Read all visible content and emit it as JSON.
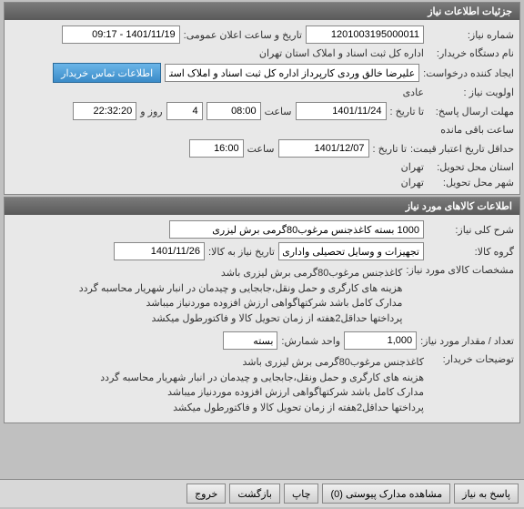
{
  "panel1": {
    "title": "جزئیات اطلاعات نیاز",
    "need_number_label": "شماره نیاز:",
    "need_number": "1201003195000011",
    "announce_label": "تاریخ و ساعت اعلان عمومی:",
    "announce_value": "1401/11/19 - 09:17",
    "buyer_label": "نام دستگاه خریدار:",
    "buyer_value": "اداره کل ثبت اسناد و املاک استان تهران",
    "creator_label": "ایجاد کننده درخواست:",
    "creator_value": "علیرضا خالق وردی کارپرداز اداره کل ثبت اسناد و املاک استان تهران",
    "contact_btn": "اطلاعات تماس خریدار",
    "priority_label": "اولویت نیاز :",
    "priority_value": "عادی",
    "deadline_label": "مهلت ارسال پاسخ:",
    "to_date_label": "تا تاریخ :",
    "deadline_date": "1401/11/24",
    "time_label": "ساعت",
    "deadline_time": "08:00",
    "days_value": "4",
    "days_label": "روز و",
    "remaining_time": "22:32:20",
    "remaining_label": "ساعت باقی مانده",
    "validity_label": "حداقل تاریخ اعتبار قیمت:",
    "validity_date": "1401/12/07",
    "validity_time": "16:00",
    "province_label": "استان محل تحویل:",
    "province_value": "تهران",
    "city_label": "شهر محل تحویل:",
    "city_value": "تهران"
  },
  "panel2": {
    "title": "اطلاعات کالاهای مورد نیاز",
    "desc_label": "شرح کلی نیاز:",
    "desc_value": "1000 بسته کاغذجنس مرغوب80گرمی برش لیزری",
    "group_label": "گروه کالا:",
    "group_value": "تجهیزات و وسایل تحصیلی واداری",
    "need_date_label": "تاریخ نیاز به کالا:",
    "need_date": "1401/11/26",
    "spec_label": "مشخصات کالای مورد نیاز:",
    "spec_text": "کاغذجنس مرغوب80گرمی برش لیزری باشد\nهزینه های کارگری و حمل ونقل،جابجایی و چیدمان در انبار شهریار محاسبه گردد\nمدارک کامل باشد شرکتهاگواهی ارزش افزوده موردنیاز میباشد\nپرداختها حداقل2هفته از زمان تحویل کالا و فاکتورطول میکشد",
    "qty_label": "تعداد / مقدار مورد نیاز:",
    "qty_value": "1,000",
    "unit_label": "واحد شمارش:",
    "unit_value": "بسته",
    "buyer_notes_label": "توضیحات خریدار:",
    "buyer_notes": "کاغذجنس مرغوب80گرمی برش لیزری باشد\nهزینه های کارگری و حمل ونقل،جابجایی و چیدمان در انبار شهریار محاسبه گردد\nمدارک کامل باشد شرکتهاگواهی ارزش افزوده موردنیاز میباشد\nپرداختها حداقل2هفته از زمان تحویل کالا و فاکتورطول میکشد"
  },
  "buttons": {
    "respond": "پاسخ به نیاز",
    "attachments": "مشاهده مدارک پیوستی (0)",
    "print": "چاپ",
    "back": "بازگشت",
    "exit": "خروج"
  }
}
